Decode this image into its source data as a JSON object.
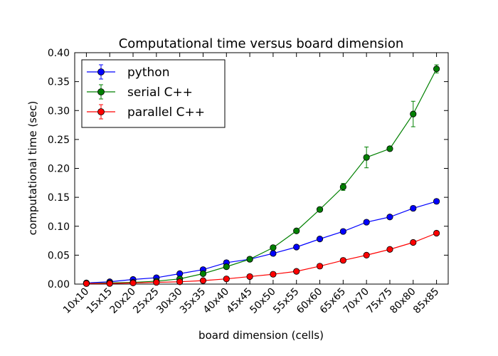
{
  "chart_data": {
    "type": "line",
    "title": "Computational time versus board dimension",
    "xlabel": "board dimension (cells)",
    "ylabel": "computational time (sec)",
    "categories": [
      "10x10",
      "15x15",
      "20x20",
      "25x25",
      "30x30",
      "35x35",
      "40x40",
      "45x45",
      "50x50",
      "55x55",
      "60x60",
      "65x65",
      "70x70",
      "75x75",
      "80x80",
      "85x85"
    ],
    "ylim": [
      0,
      0.4
    ],
    "yticks": [
      "0.00",
      "0.05",
      "0.10",
      "0.15",
      "0.20",
      "0.25",
      "0.30",
      "0.35",
      "0.40"
    ],
    "grid": false,
    "legend_position": "top-left",
    "series": [
      {
        "name": "python",
        "color": "#0000ff",
        "values": [
          0.002,
          0.004,
          0.008,
          0.011,
          0.018,
          0.025,
          0.037,
          0.043,
          0.053,
          0.064,
          0.078,
          0.091,
          0.107,
          0.116,
          0.131,
          0.143
        ],
        "errors": [
          0.001,
          0.001,
          0.001,
          0.001,
          0.001,
          0.001,
          0.004,
          0.002,
          0.002,
          0.002,
          0.002,
          0.002,
          0.002,
          0.002,
          0.004,
          0.002
        ]
      },
      {
        "name": "serial C++",
        "color": "#008000",
        "values": [
          0.001,
          0.002,
          0.003,
          0.005,
          0.009,
          0.018,
          0.03,
          0.043,
          0.063,
          0.092,
          0.129,
          0.168,
          0.219,
          0.234,
          0.294,
          0.372
        ],
        "errors": [
          0.001,
          0.001,
          0.001,
          0.001,
          0.001,
          0.001,
          0.003,
          0.002,
          0.002,
          0.002,
          0.002,
          0.006,
          0.018,
          0.004,
          0.022,
          0.007
        ]
      },
      {
        "name": "parallel C++",
        "color": "#ff0000",
        "values": [
          0.001,
          0.001,
          0.002,
          0.003,
          0.004,
          0.006,
          0.009,
          0.013,
          0.017,
          0.022,
          0.031,
          0.041,
          0.05,
          0.06,
          0.072,
          0.088
        ],
        "errors": [
          0.0005,
          0.0005,
          0.0005,
          0.0005,
          0.0005,
          0.001,
          0.001,
          0.001,
          0.001,
          0.001,
          0.002,
          0.004,
          0.002,
          0.002,
          0.002,
          0.002
        ]
      }
    ]
  }
}
